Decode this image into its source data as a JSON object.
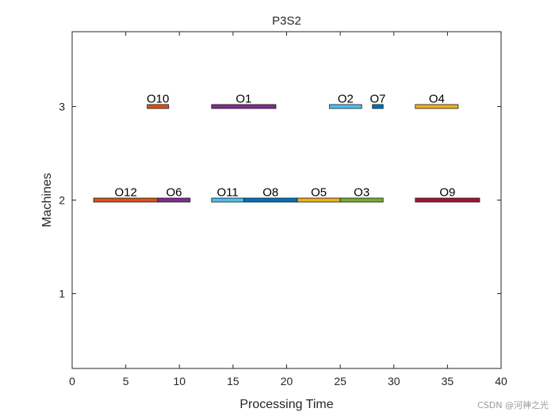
{
  "chart_data": {
    "type": "gantt",
    "title": "P3S2",
    "xlabel": "Processing Time",
    "ylabel": "Machines",
    "xlim": [
      0,
      40
    ],
    "ylim": [
      0.2,
      3.8
    ],
    "xticks": [
      0,
      5,
      10,
      15,
      20,
      25,
      30,
      35,
      40
    ],
    "yticks": [
      1,
      2,
      3
    ],
    "grid": false,
    "tasks": [
      {
        "label": "O10",
        "machine": 3,
        "start": 7,
        "end": 9,
        "color": "#D95319"
      },
      {
        "label": "O1",
        "machine": 3,
        "start": 13,
        "end": 19,
        "color": "#7E2F8E"
      },
      {
        "label": "O2",
        "machine": 3,
        "start": 24,
        "end": 27,
        "color": "#4DBEEE"
      },
      {
        "label": "O7",
        "machine": 3,
        "start": 28,
        "end": 29,
        "color": "#0072BD"
      },
      {
        "label": "O4",
        "machine": 3,
        "start": 32,
        "end": 36,
        "color": "#EDB120"
      },
      {
        "label": "O12",
        "machine": 2,
        "start": 2,
        "end": 8,
        "color": "#D95319"
      },
      {
        "label": "O6",
        "machine": 2,
        "start": 8,
        "end": 11,
        "color": "#7E2F8E"
      },
      {
        "label": "O11",
        "machine": 2,
        "start": 13,
        "end": 16,
        "color": "#4DBEEE"
      },
      {
        "label": "O8",
        "machine": 2,
        "start": 16,
        "end": 21,
        "color": "#0072BD"
      },
      {
        "label": "O5",
        "machine": 2,
        "start": 21,
        "end": 25,
        "color": "#EDB120"
      },
      {
        "label": "O3",
        "machine": 2,
        "start": 25,
        "end": 29,
        "color": "#77AC30"
      },
      {
        "label": "O9",
        "machine": 2,
        "start": 32,
        "end": 38,
        "color": "#A2142F"
      }
    ]
  },
  "watermark": "CSDN @河神之光"
}
